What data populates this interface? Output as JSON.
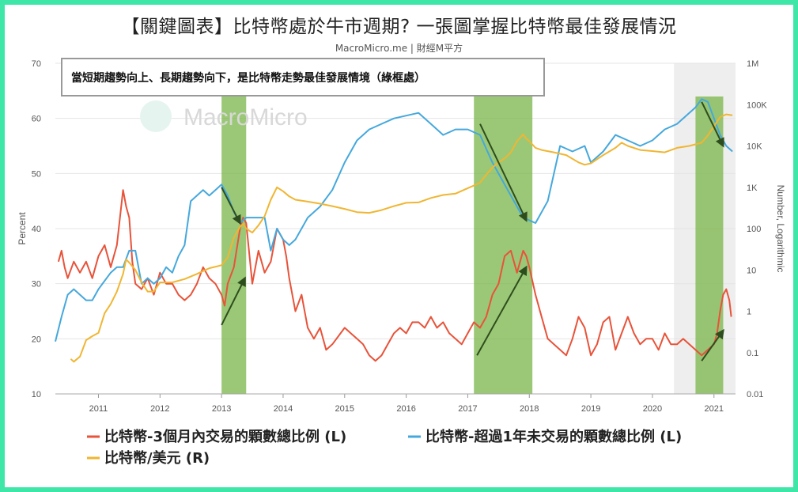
{
  "header": {
    "title": "【關鍵圖表】比特幣處於牛市週期? 一張圖掌握比特幣最佳發展情況",
    "subtitle": "MacroMicro.me | 財經M平方"
  },
  "watermark": {
    "text": "MacroMicro"
  },
  "colors": {
    "border": "#3ee6a8",
    "red": "#e8533a",
    "blue": "#45a8dc",
    "yellow": "#f0b632",
    "highlight": "#7ab648",
    "arrow": "#2e4d1e"
  },
  "chart_data": {
    "type": "line",
    "annotation": "當短期趨勢向上、長期趨勢向下，是比特幣走勢最佳發展情境（綠框處）",
    "x_range": [
      2010.3,
      2021.35
    ],
    "x_ticks": [
      "2011",
      "2012",
      "2013",
      "2014",
      "2015",
      "2016",
      "2017",
      "2018",
      "2019",
      "2020",
      "2021"
    ],
    "y_left": {
      "label": "Percent",
      "range": [
        10,
        70
      ],
      "ticks": [
        "10",
        "20",
        "30",
        "40",
        "50",
        "60",
        "70"
      ]
    },
    "y_right": {
      "label": "Number, Logarithmic",
      "log": true,
      "range": [
        0.01,
        1000000
      ],
      "ticks": [
        "0.01",
        "0.1",
        "1",
        "10",
        "100",
        "1K",
        "10K",
        "100K",
        "1M"
      ]
    },
    "highlight_ranges": [
      [
        2013.0,
        2013.4
      ],
      [
        2017.1,
        2018.05
      ],
      [
        2020.7,
        2021.15
      ]
    ],
    "trend_arrows": [
      {
        "from": [
          2013.0,
          22.5
        ],
        "to": [
          2013.38,
          31
        ]
      },
      {
        "from": [
          2013.0,
          47.5
        ],
        "to": [
          2013.3,
          41
        ]
      },
      {
        "from": [
          2017.15,
          17
        ],
        "to": [
          2017.95,
          33
        ]
      },
      {
        "from": [
          2017.2,
          59
        ],
        "to": [
          2017.95,
          41.5
        ]
      },
      {
        "from": [
          2020.8,
          16
        ],
        "to": [
          2021.15,
          21.5
        ]
      },
      {
        "from": [
          2020.8,
          63
        ],
        "to": [
          2021.15,
          55
        ]
      }
    ],
    "series": [
      {
        "name": "比特幣-3個月內交易的顆數總比例 (L)",
        "axis": "left",
        "x": [
          2010.35,
          2010.4,
          2010.45,
          2010.5,
          2010.6,
          2010.7,
          2010.8,
          2010.9,
          2011.0,
          2011.1,
          2011.2,
          2011.3,
          2011.4,
          2011.45,
          2011.5,
          2011.55,
          2011.6,
          2011.7,
          2011.8,
          2011.9,
          2012.0,
          2012.1,
          2012.2,
          2012.3,
          2012.4,
          2012.5,
          2012.6,
          2012.7,
          2012.8,
          2012.9,
          2013.0,
          2013.05,
          2013.1,
          2013.2,
          2013.3,
          2013.35,
          2013.4,
          2013.5,
          2013.6,
          2013.7,
          2013.8,
          2013.9,
          2014.0,
          2014.05,
          2014.1,
          2014.2,
          2014.3,
          2014.4,
          2014.5,
          2014.6,
          2014.7,
          2014.8,
          2015.0,
          2015.1,
          2015.2,
          2015.3,
          2015.4,
          2015.5,
          2015.6,
          2015.7,
          2015.8,
          2015.9,
          2016.0,
          2016.1,
          2016.2,
          2016.3,
          2016.4,
          2016.5,
          2016.6,
          2016.7,
          2016.8,
          2016.9,
          2017.0,
          2017.1,
          2017.2,
          2017.3,
          2017.4,
          2017.5,
          2017.6,
          2017.7,
          2017.8,
          2017.85,
          2017.9,
          2017.95,
          2018.0,
          2018.1,
          2018.2,
          2018.3,
          2018.4,
          2018.5,
          2018.6,
          2018.7,
          2018.8,
          2018.9,
          2019.0,
          2019.1,
          2019.2,
          2019.3,
          2019.4,
          2019.5,
          2019.6,
          2019.7,
          2019.8,
          2019.9,
          2020.0,
          2020.1,
          2020.2,
          2020.3,
          2020.4,
          2020.5,
          2020.6,
          2020.7,
          2020.8,
          2020.9,
          2021.0,
          2021.05,
          2021.1,
          2021.15,
          2021.2,
          2021.25,
          2021.28
        ],
        "values": [
          34,
          36,
          33,
          31,
          34,
          32,
          34,
          31,
          35,
          37,
          33,
          37,
          47,
          44,
          42,
          34,
          30,
          29,
          31,
          28,
          32,
          30,
          30,
          28,
          27,
          28,
          30,
          33,
          31,
          30,
          28,
          26,
          30,
          33,
          40,
          42,
          41,
          30,
          36,
          32,
          34,
          40,
          38,
          35,
          31,
          25,
          28,
          22,
          20,
          22,
          18,
          19,
          22,
          21,
          20,
          19,
          17,
          16,
          17,
          19,
          21,
          22,
          21,
          23,
          23,
          22,
          24,
          22,
          23,
          21,
          20,
          19,
          21,
          23,
          22,
          24,
          28,
          30,
          35,
          36,
          32,
          34,
          36,
          35,
          33,
          28,
          24,
          20,
          19,
          18,
          17,
          20,
          24,
          22,
          17,
          19,
          23,
          24,
          18,
          21,
          24,
          21,
          19,
          20,
          20,
          18,
          21,
          19,
          19,
          20,
          19,
          18,
          17,
          18,
          19,
          21,
          25,
          28,
          29,
          27,
          24
        ]
      },
      {
        "name": "比特幣-超過1年未交易的顆數總比例 (L)",
        "axis": "left",
        "x": [
          2010.3,
          2010.4,
          2010.5,
          2010.6,
          2010.8,
          2010.9,
          2011.0,
          2011.2,
          2011.3,
          2011.4,
          2011.5,
          2011.6,
          2011.7,
          2011.8,
          2011.9,
          2012.0,
          2012.1,
          2012.2,
          2012.3,
          2012.4,
          2012.5,
          2012.6,
          2012.7,
          2012.8,
          2012.9,
          2013.0,
          2013.1,
          2013.2,
          2013.3,
          2013.4,
          2013.5,
          2013.6,
          2013.7,
          2013.8,
          2013.9,
          2014.0,
          2014.1,
          2014.2,
          2014.3,
          2014.4,
          2014.5,
          2014.6,
          2014.8,
          2015.0,
          2015.2,
          2015.4,
          2015.6,
          2015.8,
          2016.0,
          2016.2,
          2016.4,
          2016.6,
          2016.8,
          2017.0,
          2017.2,
          2017.4,
          2017.6,
          2017.8,
          2017.9,
          2018.0,
          2018.1,
          2018.3,
          2018.5,
          2018.7,
          2018.9,
          2019.0,
          2019.2,
          2019.4,
          2019.6,
          2019.8,
          2020.0,
          2020.2,
          2020.4,
          2020.6,
          2020.7,
          2020.8,
          2020.9,
          2021.0,
          2021.1,
          2021.2,
          2021.3
        ],
        "values": [
          19.5,
          24,
          28,
          29,
          27,
          27,
          29,
          32,
          33,
          33,
          36,
          36,
          30,
          31,
          30,
          31,
          33,
          32,
          35,
          37,
          45,
          46,
          47,
          46,
          47,
          48,
          46,
          43,
          41,
          42,
          42,
          42,
          42,
          36,
          40,
          38,
          37,
          38,
          40,
          42,
          43,
          44,
          47,
          52,
          56,
          58,
          59,
          60,
          60.5,
          61,
          59,
          57,
          58,
          58,
          57,
          52,
          48,
          44,
          42,
          41.5,
          41,
          45,
          55,
          54,
          55,
          52,
          54,
          57,
          56,
          55,
          56,
          58,
          59,
          61,
          62,
          63.5,
          63,
          60,
          57,
          55,
          54
        ]
      },
      {
        "name": "比特幣/美元 (R)",
        "axis": "right",
        "x": [
          2010.55,
          2010.6,
          2010.7,
          2010.8,
          2010.9,
          2011.0,
          2011.1,
          2011.2,
          2011.3,
          2011.4,
          2011.45,
          2011.5,
          2011.6,
          2011.7,
          2011.8,
          2011.9,
          2012.0,
          2012.2,
          2012.4,
          2012.6,
          2012.8,
          2013.0,
          2013.1,
          2013.2,
          2013.3,
          2013.35,
          2013.4,
          2013.5,
          2013.6,
          2013.7,
          2013.8,
          2013.9,
          2014.0,
          2014.1,
          2014.2,
          2014.4,
          2014.6,
          2014.8,
          2015.0,
          2015.2,
          2015.4,
          2015.6,
          2015.8,
          2016.0,
          2016.2,
          2016.4,
          2016.6,
          2016.8,
          2017.0,
          2017.1,
          2017.2,
          2017.3,
          2017.4,
          2017.5,
          2017.6,
          2017.7,
          2017.8,
          2017.9,
          2017.95,
          2018.0,
          2018.1,
          2018.2,
          2018.4,
          2018.6,
          2018.8,
          2018.9,
          2019.0,
          2019.2,
          2019.4,
          2019.5,
          2019.6,
          2019.8,
          2020.0,
          2020.2,
          2020.4,
          2020.6,
          2020.8,
          2020.9,
          2021.0,
          2021.1,
          2021.2,
          2021.3
        ],
        "values": [
          0.07,
          0.06,
          0.08,
          0.2,
          0.25,
          0.3,
          0.9,
          1.5,
          3,
          8,
          18,
          15,
          10,
          5,
          3,
          3,
          5,
          5,
          6,
          8,
          11,
          13,
          20,
          60,
          110,
          130,
          100,
          80,
          120,
          200,
          500,
          1000,
          800,
          600,
          500,
          450,
          400,
          350,
          300,
          250,
          240,
          280,
          350,
          420,
          430,
          550,
          650,
          700,
          950,
          1100,
          1300,
          2000,
          3000,
          4000,
          5000,
          7000,
          13000,
          19000,
          15000,
          13000,
          9000,
          8000,
          7000,
          6000,
          4000,
          3500,
          3800,
          6000,
          9000,
          12000,
          10000,
          8000,
          7500,
          7000,
          9000,
          10000,
          12000,
          18000,
          30000,
          50000,
          58000,
          55000
        ]
      }
    ],
    "legend": [
      {
        "label": "比特幣-3個月內交易的顆數總比例 (L)",
        "color": "#e8533a"
      },
      {
        "label": "比特幣-超過1年未交易的顆數總比例 (L)",
        "color": "#45a8dc"
      },
      {
        "label": "比特幣/美元 (R)",
        "color": "#f0b632"
      }
    ]
  }
}
